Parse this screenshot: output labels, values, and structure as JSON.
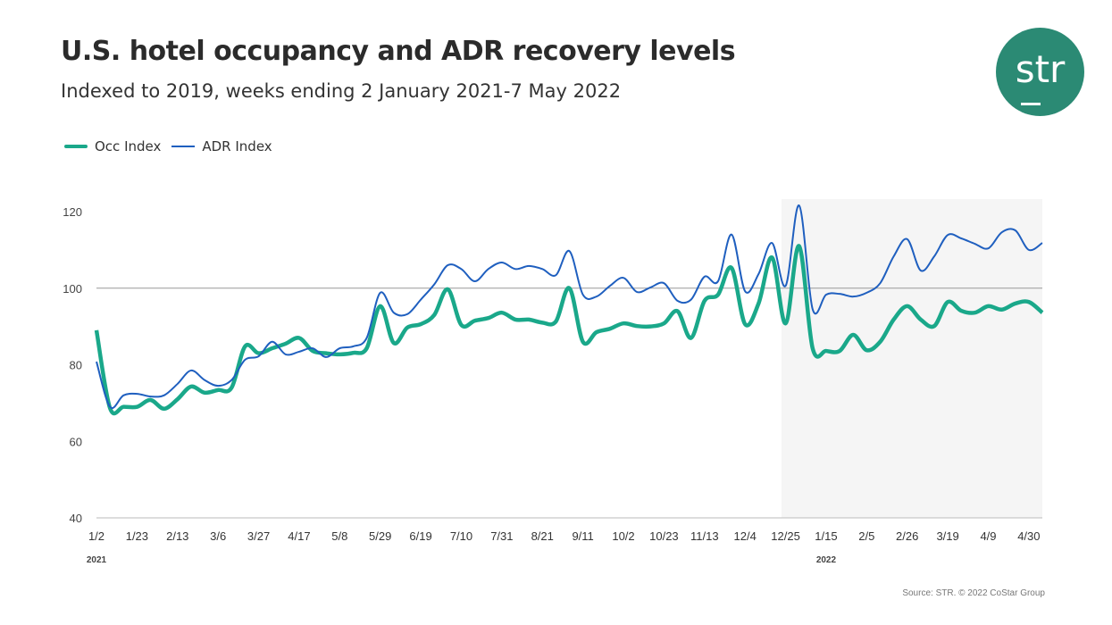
{
  "title": "U.S. hotel occupancy and ADR recovery levels",
  "subtitle": "Indexed to 2019, weeks ending 2 January 2021-7 May 2022",
  "source": "Source: STR. © 2022 CoStar Group",
  "logo_text": "str",
  "colors": {
    "occ": "#1aa88a",
    "adr": "#1f5fbf",
    "shade": "#f5f5f5",
    "logo": "#2b8a74"
  },
  "chart_data": {
    "type": "line",
    "title": "U.S. hotel occupancy and ADR recovery levels",
    "ylim": [
      40,
      120
    ],
    "yticks": [
      40,
      60,
      80,
      100,
      120
    ],
    "reference_line": 100,
    "shaded_period": "2022",
    "legend_placement": "top-left",
    "x_tick_labels": [
      "1/2",
      "1/23",
      "2/13",
      "3/6",
      "3/27",
      "4/17",
      "5/8",
      "5/29",
      "6/19",
      "7/10",
      "7/31",
      "8/21",
      "9/11",
      "10/2",
      "10/23",
      "11/13",
      "12/4",
      "12/25",
      "1/15",
      "2/5",
      "2/26",
      "3/19",
      "4/9",
      "4/30"
    ],
    "year_labels": [
      "2021",
      "2022"
    ],
    "series": [
      {
        "name": "Occ Index",
        "values": [
          89,
          68.7,
          69,
          69,
          70.8,
          68.5,
          71,
          74.3,
          72.7,
          73.4,
          74,
          84.8,
          83,
          84.3,
          85.5,
          87,
          83.6,
          83,
          82.7,
          83.1,
          84.3,
          95.3,
          85.7,
          89.7,
          90.6,
          93,
          99.7,
          90.4,
          91.5,
          92.2,
          93.6,
          91.8,
          91.8,
          91,
          91.3,
          100,
          86,
          88.5,
          89.4,
          90.8,
          90.1,
          90,
          90.8,
          94,
          87,
          96.7,
          98.3,
          105.3,
          90.6,
          96,
          108,
          90.8,
          111,
          84.3,
          83.6,
          83.6,
          87.8,
          83.8,
          86,
          91.8,
          95.3,
          91.8,
          90.1,
          96.4,
          94.1,
          93.6,
          95.3,
          94.4,
          96,
          96.4,
          93.6
        ]
      },
      {
        "name": "ADR Index",
        "values": [
          80.8,
          69,
          72,
          72.4,
          71.7,
          72,
          75,
          78.5,
          76,
          74.5,
          76,
          81.3,
          82.2,
          86,
          82.7,
          83.4,
          84.3,
          82,
          84.3,
          84.8,
          87,
          98.8,
          93.6,
          93.2,
          97,
          101,
          106,
          105,
          101.8,
          105,
          106.7,
          105,
          105.8,
          105,
          103.4,
          109.7,
          98.3,
          97.8,
          100.6,
          102.7,
          99,
          100.2,
          101.3,
          96.7,
          97,
          103,
          101.8,
          114,
          99.2,
          103.7,
          111.8,
          100.6,
          121.6,
          94.5,
          98.3,
          98.5,
          97.8,
          98.8,
          101.3,
          108.3,
          112.8,
          104.6,
          108.3,
          113.9,
          113,
          111.6,
          110.4,
          114.6,
          115.1,
          110,
          111.8
        ]
      }
    ]
  }
}
